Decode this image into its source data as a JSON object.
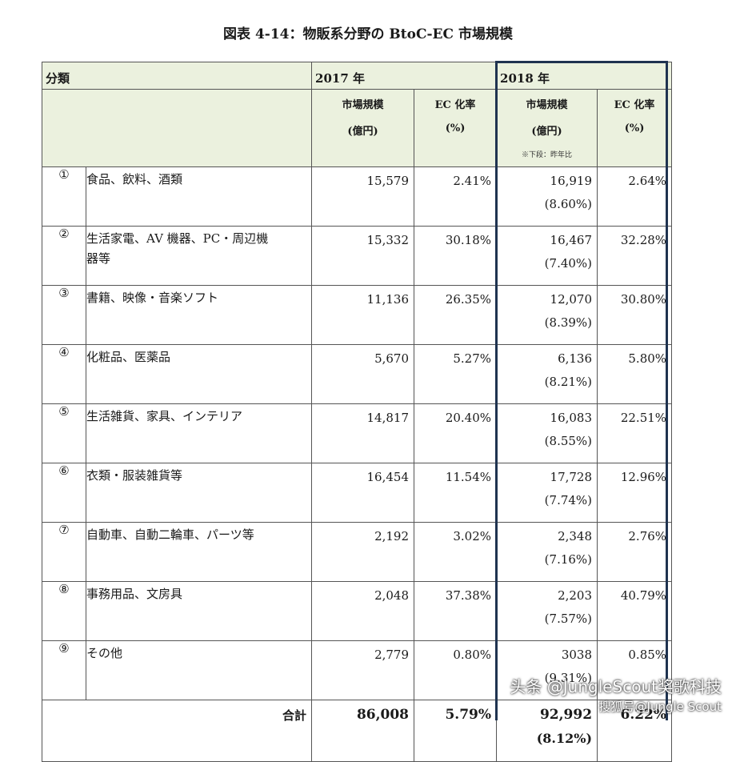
{
  "title": "図表 4-14：物販系分野の BtoC-EC 市場規模",
  "header": {
    "category": "分類",
    "year2017": "2017 年",
    "year2018": "2018 年",
    "market_size": "市場規模",
    "unit_oku": "(億円)",
    "ec_rate": "EC 化率",
    "unit_pct": "(%)",
    "note_lower": "※下段：昨年比"
  },
  "rows": [
    {
      "num": "①",
      "name": "食品、飲料、酒類",
      "name2": "",
      "v2017": "15,579",
      "r2017": "2.41%",
      "v2018": "16,919",
      "yoy": "(8.60%)",
      "r2018": "2.64%"
    },
    {
      "num": "②",
      "name": "生活家電、AV 機器、PC・周辺機",
      "name2": "器等",
      "v2017": "15,332",
      "r2017": "30.18%",
      "v2018": "16,467",
      "yoy": "(7.40%)",
      "r2018": "32.28%"
    },
    {
      "num": "③",
      "name": "書籍、映像・音楽ソフト",
      "name2": "",
      "v2017": "11,136",
      "r2017": "26.35%",
      "v2018": "12,070",
      "yoy": "(8.39%)",
      "r2018": "30.80%"
    },
    {
      "num": "④",
      "name": "化粧品、医薬品",
      "name2": "",
      "v2017": "5,670",
      "r2017": "5.27%",
      "v2018": "6,136",
      "yoy": "(8.21%)",
      "r2018": "5.80%"
    },
    {
      "num": "⑤",
      "name": "生活雑貨、家具、インテリア",
      "name2": "",
      "v2017": "14,817",
      "r2017": "20.40%",
      "v2018": "16,083",
      "yoy": "(8.55%)",
      "r2018": "22.51%"
    },
    {
      "num": "⑥",
      "name": "衣類・服装雑貨等",
      "name2": "",
      "v2017": "16,454",
      "r2017": "11.54%",
      "v2018": "17,728",
      "yoy": "(7.74%)",
      "r2018": "12.96%"
    },
    {
      "num": "⑦",
      "name": "自動車、自動二輪車、パーツ等",
      "name2": "",
      "v2017": "2,192",
      "r2017": "3.02%",
      "v2018": "2,348",
      "yoy": "(7.16%)",
      "r2018": "2.76%"
    },
    {
      "num": "⑧",
      "name": "事務用品、文房具",
      "name2": "",
      "v2017": "2,048",
      "r2017": "37.38%",
      "v2018": "2,203",
      "yoy": "(7.57%)",
      "r2018": "40.79%"
    },
    {
      "num": "⑨",
      "name": "その他",
      "name2": "",
      "v2017": "2,779",
      "r2017": "0.80%",
      "v2018": "3038",
      "yoy": "(9.31%)",
      "r2018": "0.85%"
    }
  ],
  "total": {
    "label": "合計",
    "v2017": "86,008",
    "r2017": "5.79%",
    "v2018": "92,992",
    "yoy": "(8.12%)",
    "r2018": "6.22%"
  },
  "watermark": {
    "line1": "头条 @JungleScout奖歌科技",
    "line2": "搜狐号@Jungle Scout"
  }
}
